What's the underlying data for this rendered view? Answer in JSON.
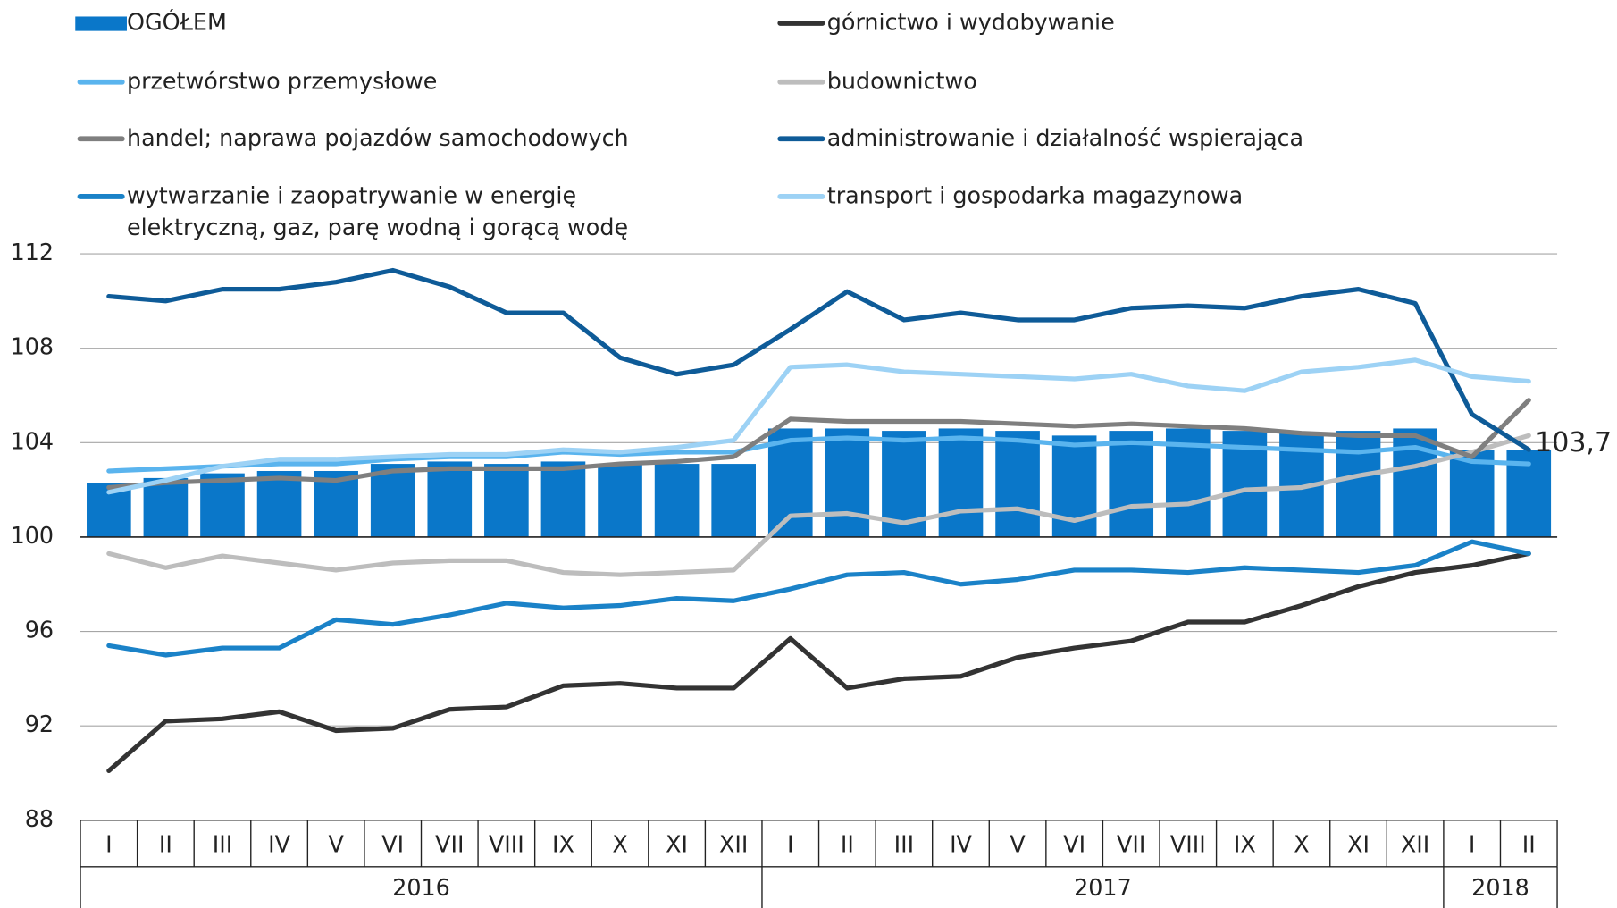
{
  "chart_data": {
    "type": "bar-line",
    "groups": [
      {
        "label": "2016",
        "categories": [
          "I",
          "II",
          "III",
          "IV",
          "V",
          "VI",
          "VII",
          "VIII",
          "IX",
          "X",
          "XI",
          "XII"
        ]
      },
      {
        "label": "2017",
        "categories": [
          "I",
          "II",
          "III",
          "IV",
          "V",
          "VI",
          "VII",
          "VIII",
          "IX",
          "X",
          "XI",
          "XII"
        ]
      },
      {
        "label": "2018",
        "categories": [
          "I",
          "II"
        ]
      }
    ],
    "ylim": [
      88,
      112
    ],
    "yticks": [
      88,
      92,
      96,
      100,
      104,
      108,
      112
    ],
    "grid": true,
    "baseline": 100,
    "bars": {
      "name": "OGÓŁEM",
      "color": "#0a77c9",
      "values": [
        102.3,
        102.5,
        102.7,
        102.8,
        102.8,
        103.1,
        103.2,
        103.1,
        103.2,
        103.1,
        103.1,
        103.1,
        104.6,
        104.6,
        104.5,
        104.6,
        104.5,
        104.3,
        104.5,
        104.6,
        104.5,
        104.4,
        104.5,
        104.6,
        103.7,
        103.7
      ],
      "value_labels": [
        null,
        null,
        null,
        null,
        null,
        null,
        null,
        null,
        null,
        null,
        null,
        null,
        null,
        null,
        null,
        null,
        null,
        null,
        null,
        null,
        null,
        null,
        null,
        null,
        null,
        "103,7"
      ]
    },
    "series": [
      {
        "name": "górnictwo i wydobywanie",
        "color": "#333333",
        "values": [
          90.1,
          92.2,
          92.3,
          92.6,
          91.8,
          91.9,
          92.7,
          92.8,
          93.7,
          93.8,
          93.6,
          93.6,
          95.7,
          93.6,
          94.0,
          94.1,
          94.9,
          95.3,
          95.6,
          96.4,
          96.4,
          97.1,
          97.9,
          98.5,
          98.8,
          99.3
        ]
      },
      {
        "name": "przetwórstwo przemysłowe",
        "color": "#5ab4ee",
        "values": [
          102.8,
          102.9,
          103.0,
          103.1,
          103.1,
          103.3,
          103.4,
          103.4,
          103.6,
          103.5,
          103.6,
          103.6,
          104.1,
          104.2,
          104.1,
          104.2,
          104.1,
          103.9,
          104.0,
          103.9,
          103.8,
          103.7,
          103.6,
          103.8,
          103.2,
          103.1
        ]
      },
      {
        "name": "budownictwo",
        "color": "#bdbdbd",
        "values": [
          99.3,
          98.7,
          99.2,
          98.9,
          98.6,
          98.9,
          99.0,
          99.0,
          98.5,
          98.4,
          98.5,
          98.6,
          100.9,
          101.0,
          100.6,
          101.1,
          101.2,
          100.7,
          101.3,
          101.4,
          102.0,
          102.1,
          102.6,
          103.0,
          103.6,
          104.3
        ]
      },
      {
        "name": "handel; naprawa pojazdów samochodowych",
        "color": "#7f7f7f",
        "values": [
          102.1,
          102.3,
          102.4,
          102.5,
          102.4,
          102.8,
          102.9,
          102.9,
          102.9,
          103.1,
          103.2,
          103.4,
          105.0,
          104.9,
          104.9,
          104.9,
          104.8,
          104.7,
          104.8,
          104.7,
          104.6,
          104.4,
          104.3,
          104.3,
          103.4,
          105.8
        ]
      },
      {
        "name": "administrowanie i działalność wspierająca",
        "color": "#0e5b98",
        "values": [
          110.2,
          110.0,
          110.5,
          110.5,
          110.8,
          111.3,
          110.6,
          109.5,
          109.5,
          107.6,
          106.9,
          107.3,
          108.8,
          110.4,
          109.2,
          109.5,
          109.2,
          109.2,
          109.7,
          109.8,
          109.7,
          110.2,
          110.5,
          109.9,
          105.2,
          103.7
        ]
      },
      {
        "name": "wytwarzanie i zaopatrywanie w energię\nelektryczną, gaz, parę wodną i gorącą wodę",
        "color": "#1a82c8",
        "values": [
          95.4,
          95.0,
          95.3,
          95.3,
          96.5,
          96.3,
          96.7,
          97.2,
          97.0,
          97.1,
          97.4,
          97.3,
          97.8,
          98.4,
          98.5,
          98.0,
          98.2,
          98.6,
          98.6,
          98.5,
          98.7,
          98.6,
          98.5,
          98.8,
          99.8,
          99.3
        ]
      },
      {
        "name": "transport i gospodarka magazynowa",
        "color": "#9dd2f5",
        "values": [
          101.9,
          102.4,
          103.0,
          103.3,
          103.3,
          103.4,
          103.5,
          103.5,
          103.7,
          103.6,
          103.8,
          104.1,
          107.2,
          107.3,
          107.0,
          106.9,
          106.8,
          106.7,
          106.9,
          106.4,
          106.2,
          107.0,
          107.2,
          107.5,
          106.8,
          106.6
        ]
      }
    ]
  }
}
